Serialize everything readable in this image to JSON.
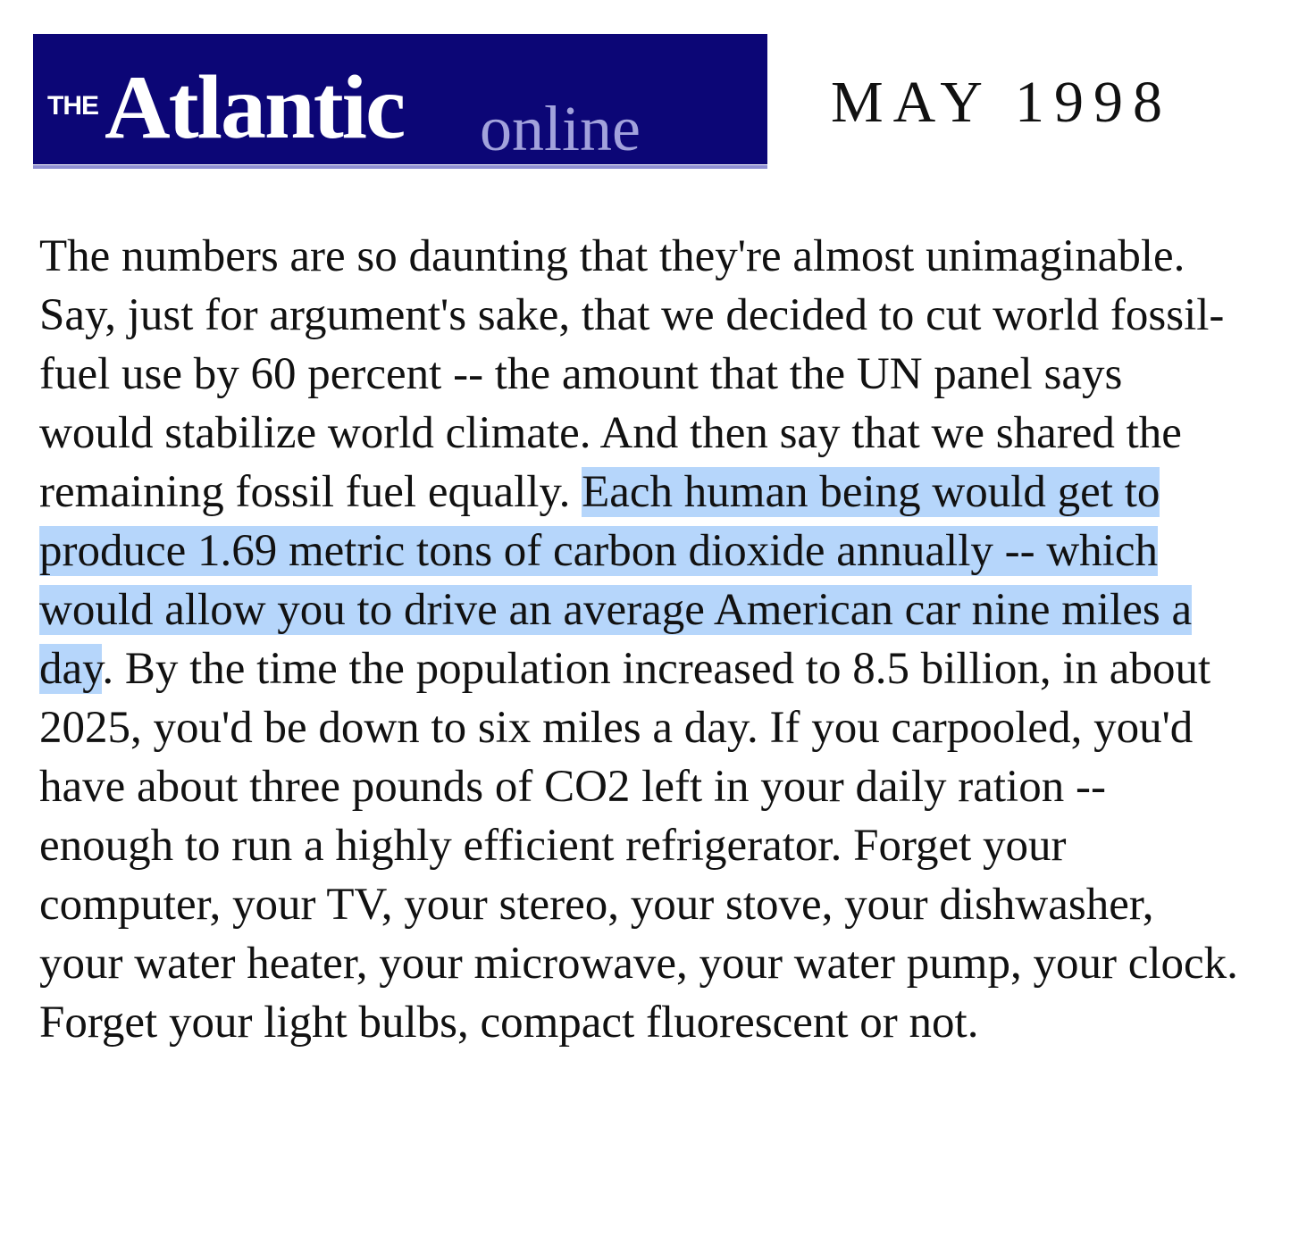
{
  "masthead": {
    "logo_the": "THE",
    "logo_atlantic": "Atlantic",
    "logo_online": "online",
    "issue_date": "MAY 1998"
  },
  "article": {
    "text_before_selection": "The numbers are so daunting that they're almost unimaginable. Say, just for argument's sake, that we decided to cut world fossil-fuel use by 60 percent -- the amount that the UN panel says would stabilize world climate. And then say that we shared the remaining fossil fuel equally. ",
    "selected_text": "Each human being would get to produce 1.69 metric tons of carbon dioxide annually -- which would allow you to drive an average American car nine miles a day",
    "text_after_selection": ". By the time the population increased to 8.5 billion, in about 2025, you'd be down to six miles a day. If you carpooled, you'd have about three pounds of CO2 left in your daily ration -- enough to run a highly efficient refrigerator. Forget your computer, your TV, your stereo, your stove, your dishwasher, your water heater, your microwave, your water pump, your clock. Forget your light bulbs, compact fluorescent or not."
  },
  "colors": {
    "logo_background": "#0c0676",
    "logo_rule": "#8f8fd2",
    "logo_online_text": "#a2a2dc",
    "selection_highlight": "#b6d6fb",
    "body_text": "#111111"
  }
}
